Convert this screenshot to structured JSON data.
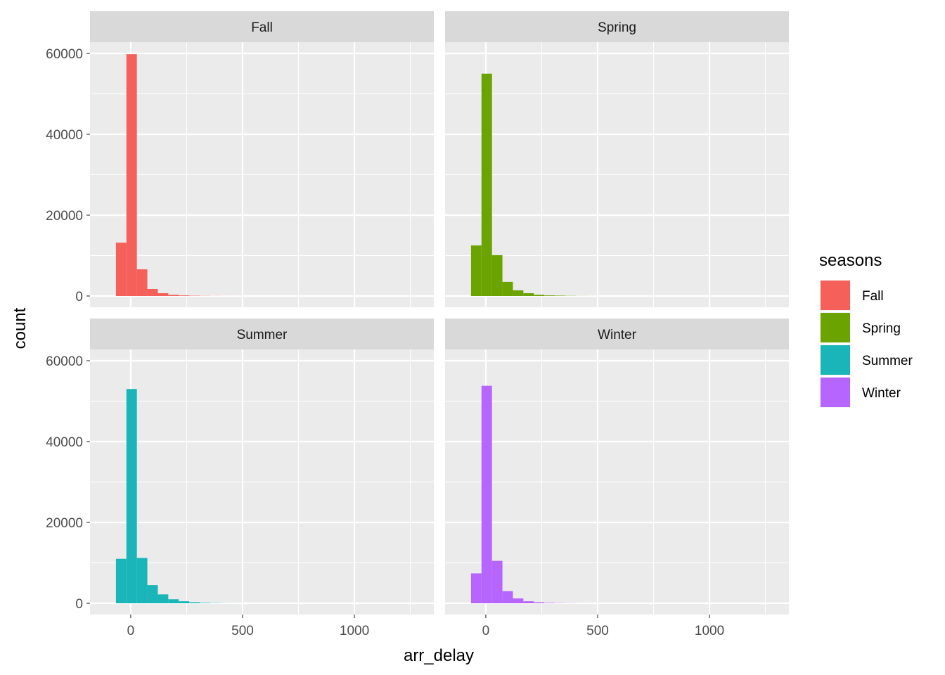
{
  "chart_data": {
    "type": "bar",
    "subtype": "faceted histogram",
    "xlabel": "arr_delay",
    "ylabel": "count",
    "xlim": [
      -182,
      1355
    ],
    "ylim": [
      -2783,
      62783
    ],
    "x_ticks": [
      0,
      500,
      1000
    ],
    "x_tick_labels": [
      "0",
      "500",
      "1000"
    ],
    "y_ticks": [
      0,
      20000,
      40000,
      60000
    ],
    "y_tick_labels": [
      "0",
      "20000",
      "40000",
      "60000"
    ],
    "grid": true,
    "binwidth": 46.8,
    "first_bin_center": -42.6,
    "legend": {
      "title": "seasons",
      "position": "right",
      "entries": [
        "Fall",
        "Spring",
        "Summer",
        "Winter"
      ]
    },
    "colors": {
      "Fall": "#F5605B",
      "Spring": "#6BA300",
      "Summer": "#19B5B8",
      "Winter": "#B765FF"
    },
    "facets": [
      {
        "name": "Fall",
        "counts": [
          13200,
          59800,
          6600,
          1740,
          700,
          300,
          150,
          80,
          40,
          20,
          10,
          5
        ]
      },
      {
        "name": "Spring",
        "counts": [
          12500,
          55000,
          10100,
          3500,
          1400,
          700,
          300,
          150,
          100,
          50,
          20,
          10
        ]
      },
      {
        "name": "Summer",
        "counts": [
          11000,
          53000,
          11200,
          4500,
          2200,
          1000,
          500,
          250,
          120,
          60,
          20,
          10
        ]
      },
      {
        "name": "Winter",
        "counts": [
          7400,
          53800,
          10500,
          3000,
          1200,
          500,
          250,
          120,
          60,
          30,
          10,
          5
        ]
      }
    ]
  }
}
